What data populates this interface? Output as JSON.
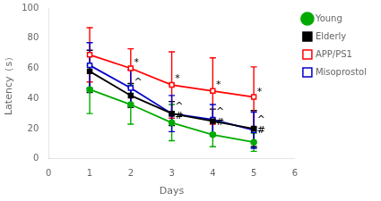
{
  "chart_data": {
    "type": "line",
    "x": [
      1,
      2,
      3,
      4,
      5
    ],
    "xlim": [
      0,
      6
    ],
    "xticks": [
      0,
      1,
      2,
      3,
      4,
      5,
      6
    ],
    "ylim": [
      0,
      100
    ],
    "yticks": [
      0,
      20,
      40,
      60,
      80,
      100
    ],
    "xlabel": "Days",
    "ylabel": "Latency（s）",
    "grid": false,
    "legend": "right",
    "series": [
      {
        "name": "Young",
        "color": "#00aa00",
        "marker": "circle",
        "values": [
          46,
          36,
          24,
          16,
          11
        ],
        "errors": [
          16,
          13,
          12,
          8,
          6
        ]
      },
      {
        "name": "Elderly",
        "color": "#000000",
        "marker": "square",
        "values": [
          58,
          42,
          30,
          25,
          20
        ],
        "errors": [
          14,
          8,
          8,
          8,
          12
        ]
      },
      {
        "name": "APP/PS1",
        "color": "#ff0000",
        "marker": "open_square",
        "values": [
          69,
          60,
          49,
          45,
          41
        ],
        "errors": [
          18,
          13,
          22,
          22,
          20
        ]
      },
      {
        "name": "Misoprostol",
        "color": "#0000cc",
        "marker": "open_square",
        "values": [
          62,
          47,
          30,
          26,
          19
        ],
        "errors": [
          15,
          12,
          12,
          10,
          12
        ]
      }
    ],
    "annotations": [
      {
        "text": "*",
        "x": 2.08,
        "y": 64
      },
      {
        "text": "^",
        "x": 2.08,
        "y": 51
      },
      {
        "text": "*",
        "x": 3.08,
        "y": 53
      },
      {
        "text": "^",
        "x": 3.08,
        "y": 35
      },
      {
        "text": "#",
        "x": 3.08,
        "y": 28
      },
      {
        "text": "*",
        "x": 4.08,
        "y": 49
      },
      {
        "text": "^",
        "x": 4.08,
        "y": 31
      },
      {
        "text": "#",
        "x": 4.08,
        "y": 24
      },
      {
        "text": "*",
        "x": 5.08,
        "y": 44
      },
      {
        "text": "^",
        "x": 5.08,
        "y": 26
      },
      {
        "text": "#",
        "x": 5.08,
        "y": 19
      }
    ]
  }
}
